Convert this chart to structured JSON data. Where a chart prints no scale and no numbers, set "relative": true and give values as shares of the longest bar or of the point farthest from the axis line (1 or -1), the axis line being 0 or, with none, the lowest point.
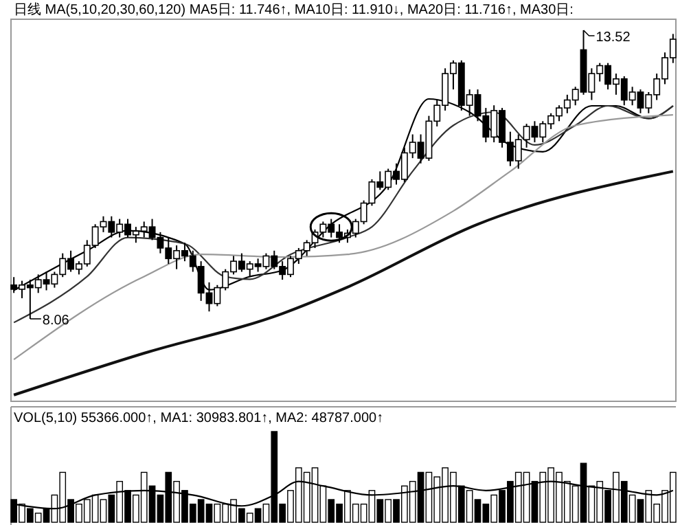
{
  "chart_data": [
    {
      "type": "candlestick",
      "title": "日线 MA(5,10,20,30,60,120) MA5日: 11.746↑, MA10日: 11.910↓, MA20日: 11.716↑, MA30日:",
      "categories": [
        null,
        null,
        null,
        null,
        null,
        null,
        null,
        null,
        null,
        null,
        null,
        null,
        null,
        null,
        null,
        null,
        null,
        null,
        null,
        null,
        null,
        null,
        null,
        null,
        null,
        null,
        null,
        null,
        null,
        null,
        null,
        null,
        null,
        null,
        null,
        null,
        null,
        null,
        null,
        null,
        null,
        null,
        null,
        null,
        null,
        null,
        null,
        null,
        null,
        null,
        null,
        null,
        null,
        null,
        null,
        null,
        null,
        null,
        null,
        null,
        null,
        null,
        null,
        null,
        null,
        null,
        null,
        null,
        null,
        null,
        null,
        null,
        null,
        null,
        null,
        null,
        null,
        null,
        null,
        null,
        null,
        null
      ],
      "ohlc": [
        [
          8.7,
          8.85,
          8.55,
          8.62
        ],
        [
          8.62,
          8.78,
          8.45,
          8.7
        ],
        [
          8.7,
          8.8,
          8.06,
          8.65
        ],
        [
          8.65,
          8.9,
          8.55,
          8.8
        ],
        [
          8.8,
          8.95,
          8.6,
          8.72
        ],
        [
          8.72,
          8.95,
          8.65,
          8.9
        ],
        [
          8.9,
          9.3,
          8.85,
          9.2
        ],
        [
          9.2,
          9.35,
          8.95,
          9.0
        ],
        [
          9.0,
          9.15,
          8.9,
          9.1
        ],
        [
          9.1,
          9.55,
          9.05,
          9.45
        ],
        [
          9.45,
          9.85,
          9.4,
          9.8
        ],
        [
          9.8,
          10.0,
          9.7,
          9.9
        ],
        [
          9.9,
          10.0,
          9.6,
          9.7
        ],
        [
          9.7,
          9.95,
          9.6,
          9.85
        ],
        [
          9.85,
          9.95,
          9.6,
          9.65
        ],
        [
          9.65,
          9.8,
          9.5,
          9.72
        ],
        [
          9.72,
          9.9,
          9.6,
          9.8
        ],
        [
          9.8,
          9.95,
          9.55,
          9.6
        ],
        [
          9.6,
          9.7,
          9.3,
          9.4
        ],
        [
          9.4,
          9.6,
          9.1,
          9.2
        ],
        [
          9.2,
          9.45,
          9.0,
          9.35
        ],
        [
          9.35,
          9.5,
          9.15,
          9.25
        ],
        [
          9.25,
          9.35,
          8.95,
          9.05
        ],
        [
          9.05,
          9.15,
          8.4,
          8.55
        ],
        [
          8.55,
          8.75,
          8.2,
          8.35
        ],
        [
          8.35,
          8.7,
          8.3,
          8.65
        ],
        [
          8.65,
          9.0,
          8.6,
          8.95
        ],
        [
          8.95,
          9.25,
          8.9,
          9.15
        ],
        [
          9.15,
          9.3,
          8.95,
          9.0
        ],
        [
          9.0,
          9.15,
          8.85,
          9.1
        ],
        [
          9.1,
          9.2,
          8.95,
          9.05
        ],
        [
          9.05,
          9.3,
          9.0,
          9.25
        ],
        [
          9.25,
          9.35,
          9.0,
          9.05
        ],
        [
          9.05,
          9.15,
          8.8,
          8.9
        ],
        [
          8.9,
          9.25,
          8.85,
          9.2
        ],
        [
          9.2,
          9.4,
          9.1,
          9.35
        ],
        [
          9.35,
          9.55,
          9.25,
          9.5
        ],
        [
          9.5,
          9.75,
          9.4,
          9.7
        ],
        [
          9.7,
          9.9,
          9.6,
          9.85
        ],
        [
          9.85,
          9.95,
          9.6,
          9.7
        ],
        [
          9.7,
          9.85,
          9.5,
          9.6
        ],
        [
          9.6,
          9.75,
          9.5,
          9.68
        ],
        [
          9.68,
          9.95,
          9.6,
          9.9
        ],
        [
          9.9,
          10.3,
          9.85,
          10.25
        ],
        [
          10.25,
          10.7,
          10.2,
          10.65
        ],
        [
          10.65,
          10.85,
          10.5,
          10.55
        ],
        [
          10.55,
          10.9,
          10.5,
          10.85
        ],
        [
          10.85,
          11.0,
          10.6,
          10.7
        ],
        [
          10.7,
          11.3,
          10.65,
          11.2
        ],
        [
          11.2,
          11.55,
          11.1,
          11.4
        ],
        [
          11.4,
          11.55,
          11.0,
          11.1
        ],
        [
          11.1,
          11.9,
          11.05,
          11.8
        ],
        [
          11.8,
          12.2,
          11.7,
          12.1
        ],
        [
          12.1,
          12.8,
          12.0,
          12.7
        ],
        [
          12.7,
          12.95,
          12.4,
          12.9
        ],
        [
          12.9,
          12.95,
          12.0,
          12.1
        ],
        [
          12.1,
          12.4,
          11.9,
          12.3
        ],
        [
          12.3,
          12.4,
          11.8,
          11.9
        ],
        [
          11.9,
          12.05,
          11.4,
          11.5
        ],
        [
          11.5,
          12.1,
          11.4,
          12.0
        ],
        [
          12.0,
          12.05,
          11.3,
          11.4
        ],
        [
          11.4,
          11.6,
          10.95,
          11.05
        ],
        [
          11.05,
          11.55,
          10.9,
          11.45
        ],
        [
          11.45,
          11.75,
          11.3,
          11.7
        ],
        [
          11.7,
          11.8,
          11.4,
          11.5
        ],
        [
          11.5,
          11.8,
          11.4,
          11.75
        ],
        [
          11.75,
          11.95,
          11.65,
          11.9
        ],
        [
          11.9,
          12.1,
          11.8,
          12.05
        ],
        [
          12.05,
          12.3,
          11.95,
          12.2
        ],
        [
          12.2,
          12.45,
          12.1,
          12.4
        ],
        [
          13.15,
          13.52,
          12.3,
          12.35
        ],
        [
          12.35,
          12.8,
          12.2,
          12.7
        ],
        [
          12.7,
          12.9,
          12.55,
          12.85
        ],
        [
          12.85,
          12.9,
          12.4,
          12.5
        ],
        [
          12.5,
          12.7,
          12.3,
          12.6
        ],
        [
          12.6,
          12.65,
          12.1,
          12.2
        ],
        [
          12.2,
          12.45,
          12.1,
          12.35
        ],
        [
          12.35,
          12.4,
          11.95,
          12.05
        ],
        [
          12.05,
          12.35,
          11.95,
          12.3
        ],
        [
          12.3,
          12.7,
          12.2,
          12.6
        ],
        [
          12.6,
          13.1,
          12.5,
          13.0
        ],
        [
          13.0,
          13.45,
          12.9,
          13.35
        ]
      ],
      "series": [
        {
          "type": "line",
          "color": "#000000",
          "values": [
            8.6,
            null,
            null,
            null,
            null,
            null,
            null,
            null,
            null,
            9.35,
            null,
            null,
            null,
            null,
            9.73,
            null,
            null,
            null,
            null,
            null,
            null,
            9.48,
            null,
            null,
            8.61,
            null,
            null,
            null,
            null,
            8.86,
            null,
            null,
            null,
            8.98,
            null,
            null,
            null,
            null,
            null,
            9.85,
            null,
            null,
            null,
            null,
            null,
            null,
            10.6,
            null,
            null,
            null,
            null,
            12.22,
            null,
            null,
            null,
            null,
            11.97,
            null,
            null,
            null,
            null,
            11.35,
            null,
            null,
            null,
            11.22,
            null,
            null,
            null,
            null,
            null,
            12.09,
            null,
            null,
            12.09,
            null,
            null,
            null,
            11.85,
            null,
            null,
            12.09
          ]
        },
        {
          "type": "line",
          "color": "#333333",
          "values": [
            7.99,
            null,
            null,
            null,
            null,
            null,
            null,
            null,
            null,
            8.86,
            null,
            null,
            null,
            null,
            9.6,
            null,
            null,
            null,
            null,
            null,
            null,
            9.48,
            null,
            null,
            null,
            null,
            8.86,
            null,
            null,
            8.81,
            null,
            null,
            null,
            null,
            9.28,
            null,
            null,
            null,
            null,
            null,
            null,
            9.6,
            null,
            null,
            9.8,
            null,
            null,
            null,
            null,
            10.85,
            null,
            null,
            null,
            null,
            11.72,
            null,
            null,
            null,
            null,
            11.97,
            null,
            null,
            null,
            null,
            11.35,
            null,
            null,
            null,
            null,
            11.72,
            null,
            null,
            null,
            12.09,
            null,
            null,
            null,
            null,
            11.85,
            null,
            null,
            12.09
          ]
        },
        {
          "type": "line",
          "color": "#999999",
          "values": [
            7.29,
            null,
            null,
            null,
            null,
            null,
            null,
            null,
            null,
            null,
            null,
            null,
            null,
            null,
            null,
            null,
            8.86,
            null,
            null,
            null,
            null,
            null,
            null,
            9.28,
            null,
            null,
            null,
            null,
            null,
            null,
            null,
            null,
            null,
            9.23,
            null,
            null,
            null,
            null,
            null,
            null,
            null,
            9.28,
            null,
            null,
            null,
            null,
            null,
            null,
            null,
            null,
            null,
            null,
            null,
            null,
            10.1,
            null,
            null,
            null,
            null,
            null,
            null,
            10.85,
            null,
            null,
            null,
            null,
            null,
            null,
            null,
            11.72,
            null,
            null,
            null,
            null,
            null,
            null,
            null,
            null,
            null,
            null,
            null,
            11.92
          ]
        },
        {
          "type": "line",
          "color": "#111111",
          "values": [
            6.62,
            null,
            null,
            null,
            null,
            null,
            null,
            null,
            null,
            null,
            null,
            null,
            null,
            null,
            null,
            null,
            7.41,
            null,
            null,
            null,
            null,
            null,
            null,
            null,
            null,
            null,
            null,
            null,
            null,
            null,
            null,
            null,
            null,
            8.16,
            null,
            null,
            null,
            null,
            null,
            null,
            null,
            8.66,
            null,
            null,
            null,
            null,
            null,
            null,
            null,
            null,
            null,
            null,
            null,
            null,
            null,
            null,
            null,
            9.85,
            null,
            null,
            null,
            null,
            null,
            null,
            null,
            null,
            null,
            null,
            null,
            null,
            null,
            null,
            null,
            null,
            null,
            null,
            null,
            null,
            null,
            null,
            null,
            10.85
          ]
        }
      ],
      "annotations": [
        "8.06",
        "13.52"
      ]
    },
    {
      "type": "bar",
      "title": "VOL(5,10) 55366.000↑, MA1: 30983.801↑, MA2: 48787.000↑",
      "relative": true,
      "categories": [
        null,
        null,
        null,
        null,
        null,
        null,
        null,
        null,
        null,
        null,
        null,
        null,
        null,
        null,
        null,
        null,
        null,
        null,
        null,
        null,
        null,
        null,
        null,
        null,
        null,
        null,
        null,
        null,
        null,
        null,
        null,
        null,
        null,
        null,
        null,
        null,
        null,
        null,
        null,
        null,
        null,
        null,
        null,
        null,
        null,
        null,
        null,
        null,
        null,
        null,
        null,
        null,
        null,
        null,
        null,
        null,
        null,
        null,
        null,
        null,
        null,
        null,
        null,
        null,
        null,
        null,
        null,
        null,
        null,
        null,
        null,
        null,
        null,
        null,
        null,
        null,
        null,
        null,
        null,
        null,
        null,
        null
      ],
      "series": [
        {
          "type": "bar",
          "values": [
            0.25,
            0.2,
            0.15,
            0.1,
            0.15,
            0.3,
            0.55,
            0.25,
            0.2,
            0.25,
            0.3,
            0.25,
            0.3,
            0.45,
            0.35,
            0.3,
            0.55,
            0.4,
            0.3,
            0.55,
            0.45,
            0.35,
            0.2,
            0.25,
            0.2,
            0.2,
            0.2,
            0.25,
            0.15,
            0.1,
            0.15,
            0.2,
            1,
            0.2,
            0.35,
            0.6,
            0.55,
            0.6,
            0.4,
            0.25,
            0.2,
            0.35,
            0.2,
            0.2,
            0.35,
            0.25,
            0.25,
            0.25,
            0.4,
            0.45,
            0.55,
            0.55,
            0.5,
            0.6,
            0.55,
            0.4,
            0.35,
            0.25,
            0.2,
            0.3,
            0.35,
            0.45,
            0.55,
            0.55,
            0.45,
            0.55,
            0.6,
            0.55,
            0.45,
            0.4,
            0.65,
            0.4,
            0.45,
            0.35,
            0.55,
            0.45,
            0.3,
            0.25,
            0.35,
            0.2,
            0.35,
            0.55
          ],
          "colors": [
            "#000000",
            "#ffffff",
            "#000000",
            "#ffffff",
            "#000000",
            "#ffffff",
            "#ffffff",
            "#000000",
            "#ffffff",
            "#ffffff",
            "#ffffff",
            "#ffffff",
            "#000000",
            "#ffffff",
            "#000000",
            "#ffffff",
            "#ffffff",
            "#000000",
            "#000000",
            "#000000",
            "#ffffff",
            "#000000",
            "#000000",
            "#000000",
            "#000000",
            "#ffffff",
            "#ffffff",
            "#ffffff",
            "#000000",
            "#ffffff",
            "#000000",
            "#ffffff",
            "#000000",
            "#000000",
            "#ffffff",
            "#ffffff",
            "#ffffff",
            "#ffffff",
            "#ffffff",
            "#000000",
            "#000000",
            "#ffffff",
            "#ffffff",
            "#ffffff",
            "#ffffff",
            "#000000",
            "#ffffff",
            "#000000",
            "#ffffff",
            "#ffffff",
            "#000000",
            "#ffffff",
            "#ffffff",
            "#ffffff",
            "#ffffff",
            "#000000",
            "#ffffff",
            "#000000",
            "#000000",
            "#ffffff",
            "#000000",
            "#000000",
            "#ffffff",
            "#ffffff",
            "#000000",
            "#ffffff",
            "#ffffff",
            "#ffffff",
            "#ffffff",
            "#ffffff",
            "#000000",
            "#ffffff",
            "#ffffff",
            "#000000",
            "#ffffff",
            "#000000",
            "#ffffff",
            "#000000",
            "#ffffff",
            "#ffffff",
            "#ffffff",
            "#ffffff"
          ]
        },
        {
          "type": "line",
          "color": "#000000",
          "values": [
            0.2,
            null,
            null,
            null,
            null,
            0.15,
            null,
            null,
            null,
            null,
            0.3,
            null,
            null,
            null,
            null,
            null,
            0.35,
            null,
            null,
            null,
            null,
            null,
            0.3,
            null,
            null,
            null,
            null,
            null,
            0.18,
            null,
            null,
            null,
            0.3,
            null,
            null,
            0.45,
            null,
            null,
            0.4,
            null,
            null,
            null,
            null,
            null,
            0.3,
            null,
            null,
            null,
            null,
            null,
            0.35,
            null,
            null,
            null,
            0.4,
            null,
            null,
            null,
            0.35,
            null,
            null,
            null,
            0.4,
            null,
            null,
            null,
            0.45,
            null,
            null,
            null,
            0.4,
            null,
            null,
            null,
            null,
            0.35,
            null,
            null,
            null,
            0.3,
            null,
            0.35
          ]
        }
      ]
    }
  ]
}
